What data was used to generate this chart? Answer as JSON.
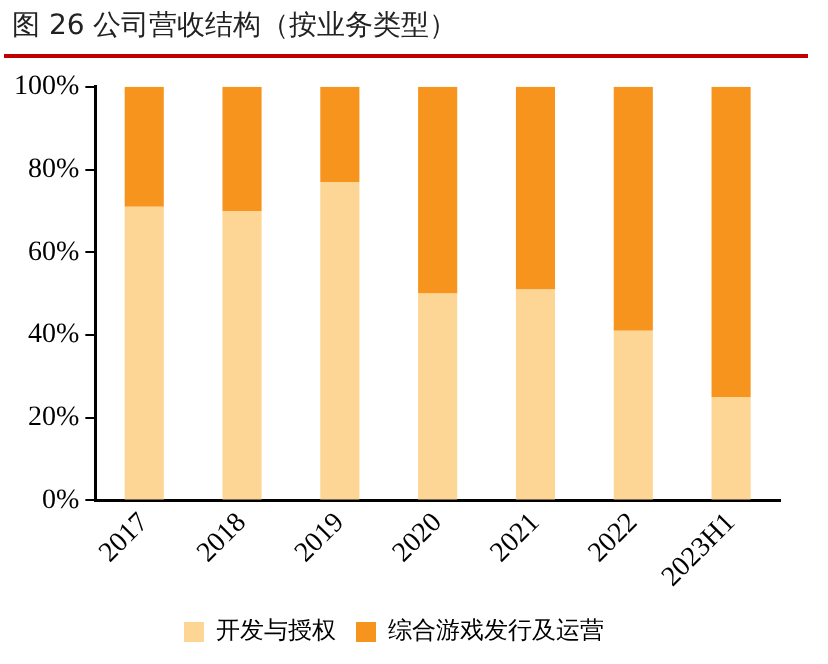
{
  "chart_data": {
    "type": "bar",
    "title": "图 26 公司营收结构（按业务类型）",
    "stacked": true,
    "categories": [
      "2017",
      "2018",
      "2019",
      "2020",
      "2021",
      "2022",
      "2023H1"
    ],
    "series": [
      {
        "name": "开发与授权",
        "color": "#fdd595",
        "values": [
          71,
          70,
          77,
          50,
          51,
          41,
          25
        ]
      },
      {
        "name": "综合游戏发行及运营",
        "color": "#f7941d",
        "values": [
          29,
          30,
          23,
          50,
          49,
          59,
          75
        ]
      }
    ],
    "ylim": [
      0,
      100
    ],
    "yticks": [
      {
        "value": 0,
        "label": "0%"
      },
      {
        "value": 20,
        "label": "20%"
      },
      {
        "value": 40,
        "label": "40%"
      },
      {
        "value": 60,
        "label": "60%"
      },
      {
        "value": 80,
        "label": "80%"
      },
      {
        "value": 100,
        "label": "100%"
      }
    ],
    "grid": false,
    "legend": "bottom"
  }
}
